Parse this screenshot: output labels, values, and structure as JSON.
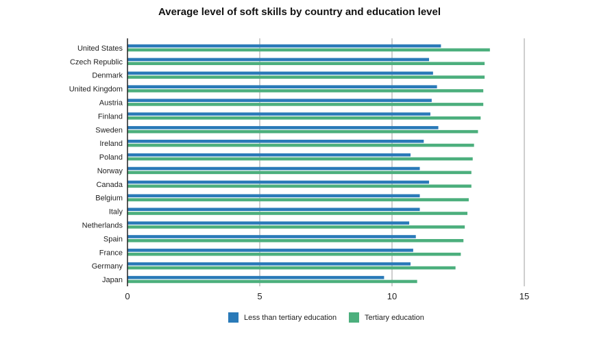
{
  "chart_data": {
    "type": "bar",
    "orientation": "horizontal",
    "title": "Average level of soft skills by country and education level",
    "xlabel": "",
    "ylabel": "",
    "xlim": [
      0,
      15
    ],
    "xticks": [
      0,
      5,
      10,
      15
    ],
    "grid": "vertical",
    "legend_position": "bottom",
    "categories": [
      "United States",
      "Czech Republic",
      "Denmark",
      "United Kingdom",
      "Austria",
      "Finland",
      "Sweden",
      "Ireland",
      "Poland",
      "Norway",
      "Canada",
      "Belgium",
      "Italy",
      "Netherlands",
      "Spain",
      "France",
      "Germany",
      "Japan"
    ],
    "series": [
      {
        "name": "Less than tertiary education",
        "color": "#2a7ab8",
        "values": [
          11.85,
          11.4,
          11.55,
          11.7,
          11.5,
          11.45,
          11.75,
          11.2,
          10.7,
          11.05,
          11.4,
          11.05,
          11.05,
          10.65,
          10.9,
          10.8,
          10.7,
          9.7
        ]
      },
      {
        "name": "Tertiary education",
        "color": "#4caf7d",
        "values": [
          13.7,
          13.5,
          13.5,
          13.45,
          13.45,
          13.35,
          13.25,
          13.1,
          13.05,
          13.0,
          13.0,
          12.9,
          12.85,
          12.75,
          12.7,
          12.6,
          12.4,
          10.95
        ]
      }
    ]
  }
}
